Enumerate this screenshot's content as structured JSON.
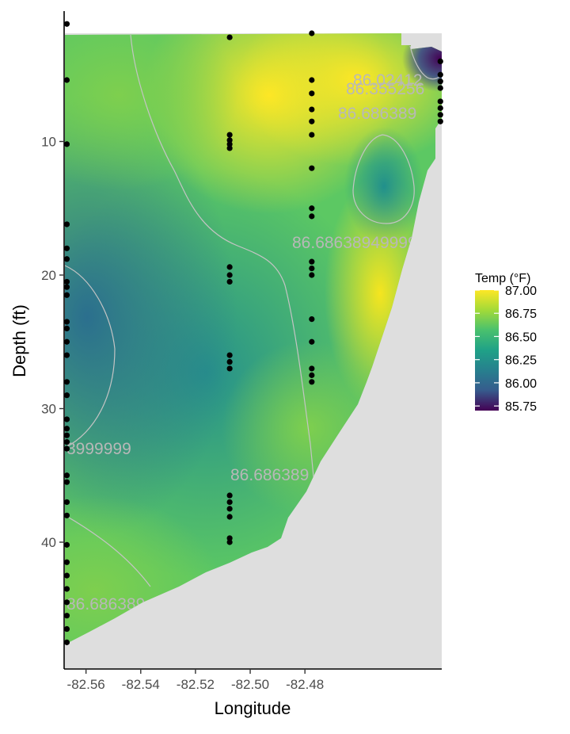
{
  "chart_data": {
    "type": "heatmap",
    "xlabel": "Longitude",
    "ylabel": "Depth (ft)",
    "xlim": [
      -82.568,
      -82.43
    ],
    "ylim": [
      49.5,
      0
    ],
    "x_ticks": [
      -82.56,
      -82.54,
      -82.52,
      -82.5,
      -82.48
    ],
    "x_tick_labels": [
      "-82.56",
      "-82.54",
      "-82.52",
      "-82.50",
      "-82.48"
    ],
    "y_ticks": [
      10,
      20,
      30,
      40
    ],
    "y_tick_labels": [
      "10",
      "20",
      "30",
      "40"
    ],
    "legend": {
      "title": "Temp (°F)",
      "position": "right",
      "values": [
        87.0,
        86.75,
        86.5,
        86.25,
        86.0,
        85.75
      ],
      "labels": [
        "87.00",
        "86.75",
        "86.50",
        "86.25",
        "86.00",
        "85.75"
      ],
      "colormap": "viridis"
    },
    "contour_labels": [
      "86.02412",
      "86.355256",
      "86.686389",
      "86.686389499999",
      "3999999",
      "86.686389",
      "86.686389"
    ],
    "colors": {
      "background_fill": "#dedede",
      "contour_line": "#c4c4c4",
      "points": "#000000"
    },
    "sample_points": [
      {
        "x": -82.567,
        "depth": [
          1.2,
          5.4,
          10.2,
          16.2,
          18.0,
          18.8,
          20.5,
          20.9,
          21.5,
          23.5,
          24.0,
          25.0,
          26.0,
          28.0,
          29.0,
          30.8,
          31.5,
          32.0,
          32.5,
          33.0,
          35.0,
          35.5,
          37.0,
          38.0,
          40.2,
          41.5,
          42.5,
          43.5,
          44.5,
          45.5,
          46.5,
          47.5
        ]
      },
      {
        "x": -82.5075,
        "depth": [
          2.2,
          9.5,
          9.9,
          10.2,
          10.5,
          19.4,
          20.0,
          20.5,
          26.0,
          26.5,
          27.0,
          36.5,
          37.0,
          37.5,
          38.1,
          39.7,
          40.0
        ]
      },
      {
        "x": -82.4775,
        "depth": [
          1.9,
          5.4,
          6.4,
          7.6,
          8.5,
          9.5,
          12.0,
          15.0,
          15.6,
          19.0,
          19.5,
          20.0,
          23.3,
          25.0,
          27.0,
          27.5,
          28.0
        ]
      },
      {
        "x": -82.4305,
        "depth": [
          4.0,
          5.0,
          5.5,
          6.0,
          7.0,
          7.5,
          8.0,
          8.5
        ]
      }
    ]
  }
}
